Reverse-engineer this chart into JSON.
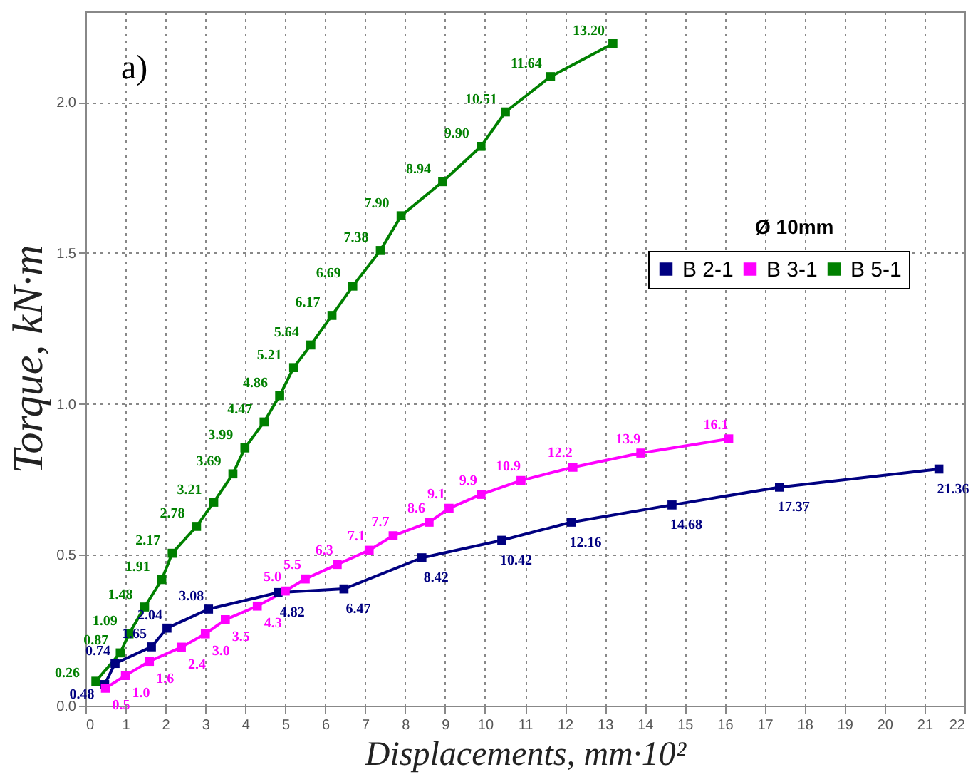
{
  "chart_data": {
    "type": "line",
    "xlabel": "Displacements, mm·10²",
    "ylabel": "Torque, kN·m",
    "xlim": [
      0,
      22
    ],
    "xticks": [
      0,
      1,
      2,
      3,
      4,
      5,
      6,
      7,
      8,
      9,
      10,
      11,
      12,
      13,
      14,
      15,
      16,
      17,
      18,
      19,
      20,
      21,
      22
    ],
    "ylim": [
      0,
      2.3
    ],
    "yticks": [
      {
        "value": 0,
        "label": "0.0"
      },
      {
        "value": 0.5,
        "label": "0.5"
      },
      {
        "value": 1,
        "label": "1.0"
      },
      {
        "value": 1.5,
        "label": "1.5"
      },
      {
        "value": 2,
        "label": "2.0"
      }
    ],
    "grid": true,
    "legend": "right",
    "marker": "square",
    "line_style": "solid",
    "annotations": [
      "a)",
      "Ø 10mm",
      {
        "text": "0.48",
        "x": 0.48,
        "y": 0.07
      },
      {
        "text": "0.74",
        "x": 0.74,
        "y": 0.14
      },
      {
        "text": "1.65",
        "x": 1.65,
        "y": 0.195
      },
      {
        "text": "2.04",
        "x": 2.04,
        "y": 0.257
      },
      {
        "text": "3.08",
        "x": 3.08,
        "y": 0.32
      },
      {
        "text": "4.82",
        "x": 4.82,
        "y": 0.375
      },
      {
        "text": "6.47",
        "x": 6.47,
        "y": 0.387
      },
      {
        "text": "8.42",
        "x": 8.42,
        "y": 0.49
      },
      {
        "text": "10.42",
        "x": 10.42,
        "y": 0.548
      },
      {
        "text": "12.16",
        "x": 12.16,
        "y": 0.608
      },
      {
        "text": "14.68",
        "x": 14.68,
        "y": 0.665
      },
      {
        "text": "17.37",
        "x": 17.37,
        "y": 0.724
      },
      {
        "text": "21.36",
        "x": 21.36,
        "y": 0.784
      },
      {
        "text": "0.5",
        "x": 0.5,
        "y": 0.058
      },
      {
        "text": "1.0",
        "x": 1.0,
        "y": 0.1
      },
      {
        "text": "1.6",
        "x": 1.6,
        "y": 0.147
      },
      {
        "text": "2.4",
        "x": 2.4,
        "y": 0.194
      },
      {
        "text": "3.0",
        "x": 3.0,
        "y": 0.238
      },
      {
        "text": "3.5",
        "x": 3.5,
        "y": 0.285
      },
      {
        "text": "4.3",
        "x": 4.3,
        "y": 0.33
      },
      {
        "text": "5.0",
        "x": 5.0,
        "y": 0.38
      },
      {
        "text": "5.5",
        "x": 5.5,
        "y": 0.42
      },
      {
        "text": "6.3",
        "x": 6.3,
        "y": 0.468
      },
      {
        "text": "7.1",
        "x": 7.1,
        "y": 0.515
      },
      {
        "text": "7.7",
        "x": 7.7,
        "y": 0.563
      },
      {
        "text": "8.6",
        "x": 8.6,
        "y": 0.608
      },
      {
        "text": "9.1",
        "x": 9.1,
        "y": 0.654
      },
      {
        "text": "9.9",
        "x": 9.9,
        "y": 0.7
      },
      {
        "text": "10.9",
        "x": 10.9,
        "y": 0.746
      },
      {
        "text": "12.2",
        "x": 12.2,
        "y": 0.79
      },
      {
        "text": "13.9",
        "x": 13.9,
        "y": 0.837
      },
      {
        "text": "16.1",
        "x": 16.1,
        "y": 0.884
      },
      {
        "text": "0.26",
        "x": 0.26,
        "y": 0.081
      },
      {
        "text": "0.87",
        "x": 0.87,
        "y": 0.175
      },
      {
        "text": "1.09",
        "x": 1.09,
        "y": 0.238
      },
      {
        "text": "1.48",
        "x": 1.48,
        "y": 0.327
      },
      {
        "text": "1.91",
        "x": 1.91,
        "y": 0.418
      },
      {
        "text": "2.17",
        "x": 2.17,
        "y": 0.505
      },
      {
        "text": "2.78",
        "x": 2.78,
        "y": 0.594
      },
      {
        "text": "3.21",
        "x": 3.21,
        "y": 0.674
      },
      {
        "text": "3.69",
        "x": 3.69,
        "y": 0.768
      },
      {
        "text": "3.99",
        "x": 3.99,
        "y": 0.854
      },
      {
        "text": "4.47",
        "x": 4.47,
        "y": 0.94
      },
      {
        "text": "4.86",
        "x": 4.86,
        "y": 1.027
      },
      {
        "text": "5.21",
        "x": 5.21,
        "y": 1.12
      },
      {
        "text": "5.64",
        "x": 5.64,
        "y": 1.195
      },
      {
        "text": "6.17",
        "x": 6.17,
        "y": 1.293
      },
      {
        "text": "6.69",
        "x": 6.69,
        "y": 1.39
      },
      {
        "text": "7.38",
        "x": 7.38,
        "y": 1.508
      },
      {
        "text": "7.90",
        "x": 7.9,
        "y": 1.623
      },
      {
        "text": "8.94",
        "x": 8.94,
        "y": 1.736
      },
      {
        "text": "9.90",
        "x": 9.9,
        "y": 1.853
      },
      {
        "text": "10.51",
        "x": 10.51,
        "y": 1.967
      },
      {
        "text": "11.64",
        "x": 11.64,
        "y": 2.084
      },
      {
        "text": "13.20",
        "x": 13.2,
        "y": 2.193
      }
    ],
    "series": [
      {
        "name": "B 2-1",
        "color": "#000080",
        "x": [
          0.48,
          0.74,
          1.65,
          2.04,
          3.08,
          4.82,
          6.47,
          8.42,
          10.42,
          12.16,
          14.68,
          17.37,
          21.36
        ],
        "values": [
          0.07,
          0.14,
          0.195,
          0.257,
          0.32,
          0.375,
          0.387,
          0.49,
          0.548,
          0.608,
          0.665,
          0.724,
          0.784
        ]
      },
      {
        "name": "B 3-1",
        "color": "#ff00ff",
        "x": [
          0.5,
          1.0,
          1.6,
          2.4,
          3.0,
          3.5,
          4.3,
          5.0,
          5.5,
          6.3,
          7.1,
          7.7,
          8.6,
          9.1,
          9.9,
          10.9,
          12.2,
          13.9,
          16.1
        ],
        "values": [
          0.058,
          0.1,
          0.147,
          0.194,
          0.238,
          0.285,
          0.33,
          0.38,
          0.42,
          0.468,
          0.515,
          0.563,
          0.608,
          0.654,
          0.7,
          0.746,
          0.79,
          0.837,
          0.884
        ]
      },
      {
        "name": "B 5-1",
        "color": "#008000",
        "x": [
          0.26,
          0.87,
          1.09,
          1.48,
          1.91,
          2.17,
          2.78,
          3.21,
          3.69,
          3.99,
          4.47,
          4.86,
          5.21,
          5.64,
          6.17,
          6.69,
          7.38,
          7.9,
          8.94,
          9.9,
          10.51,
          11.64,
          13.2
        ],
        "values": [
          0.081,
          0.175,
          0.238,
          0.327,
          0.418,
          0.505,
          0.594,
          0.674,
          0.768,
          0.854,
          0.94,
          1.027,
          1.12,
          1.195,
          1.293,
          1.39,
          1.508,
          1.623,
          1.736,
          1.853,
          1.967,
          2.084,
          2.193
        ]
      }
    ]
  }
}
